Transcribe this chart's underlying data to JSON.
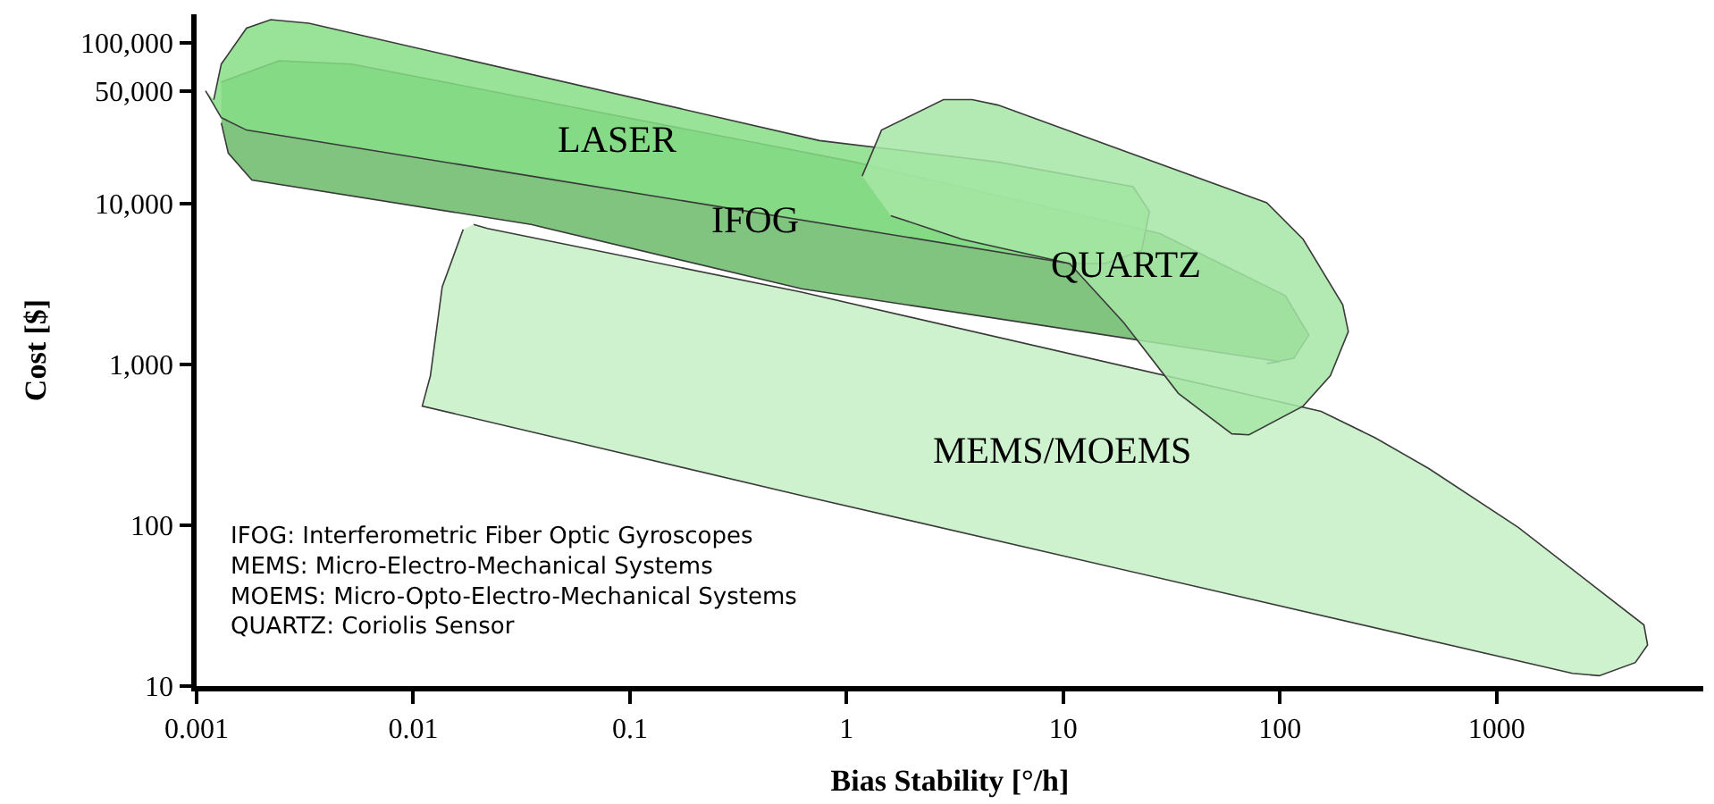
{
  "chart_data": {
    "type": "area",
    "log": "xy",
    "legend": false,
    "xlabel": "Bias Stability [°/h]",
    "ylabel": "Cost [$]",
    "xlim": [
      0.001,
      9000
    ],
    "ylim": [
      10,
      150000
    ],
    "xticks": [
      0.001,
      0.01,
      0.1,
      1,
      10,
      100,
      1000
    ],
    "yticks": [
      10,
      100,
      {
        "value": 1000,
        "label": "1,000"
      },
      {
        "value": 10000,
        "label": "10,000"
      },
      {
        "value": 50000,
        "label": "50,000"
      },
      {
        "value": 100000,
        "label": "100,000"
      }
    ],
    "series": [
      {
        "name": "MEMS/MOEMS",
        "color": "#c5efc5",
        "x": [
          0.019,
          0.022,
          0.62,
          155,
          275,
          487,
          1260,
          4790,
          4980,
          4370,
          2980,
          2240,
          0.62,
          0.011,
          0.012,
          0.0136,
          0.017
        ],
        "values": [
          7400,
          7000,
          2810,
          510,
          350,
          225,
          97,
          24,
          18,
          14,
          11.6,
          12,
          153,
          550,
          850,
          3030,
          6900
        ]
      },
      {
        "name": "IFOG",
        "color": "#6aba6a",
        "x": [
          0.0013,
          0.0024,
          0.0052,
          1.09,
          28,
          106,
          136,
          116,
          87,
          100,
          0.62,
          0.035,
          0.0018,
          0.0014,
          0.0013
        ],
        "values": [
          57000,
          77000,
          73600,
          18100,
          6500,
          2670,
          1520,
          1090,
          1010,
          1040,
          2950,
          7400,
          14000,
          20600,
          31700
        ]
      },
      {
        "name": "LASER",
        "color": "#86de86",
        "x": [
          0.0012,
          0.0013,
          0.0017,
          0.0022,
          0.0033,
          0.75,
          5,
          21,
          25,
          23,
          15.7,
          10.7,
          0.035,
          0.0017,
          0.0013,
          0.0011
        ],
        "values": [
          44200,
          73600,
          123000,
          139000,
          132000,
          24600,
          18100,
          12700,
          8900,
          5100,
          4230,
          4230,
          14800,
          28600,
          34200,
          50200
        ]
      },
      {
        "name": "QUARTZ",
        "color": "#a6e6a6",
        "x": [
          1.18,
          1.45,
          2.8,
          3.8,
          5,
          87,
          128,
          195,
          207,
          171,
          128,
          72,
          60,
          34,
          19,
          10.7,
          3.4,
          1.6
        ],
        "values": [
          14800,
          28600,
          44200,
          44200,
          40900,
          10100,
          6000,
          2350,
          1600,
          850,
          550,
          365,
          370,
          660,
          1820,
          4230,
          6000,
          8400
        ]
      }
    ],
    "annotations": [
      "IFOG: Interferometric Fiber Optic Gyroscopes",
      "MEMS: Micro-Electro-Mechanical Systems",
      "MOEMS: Micro-Opto-Electro-Mechanical Systems",
      "QUARTZ: Coriolis Sensor"
    ]
  }
}
